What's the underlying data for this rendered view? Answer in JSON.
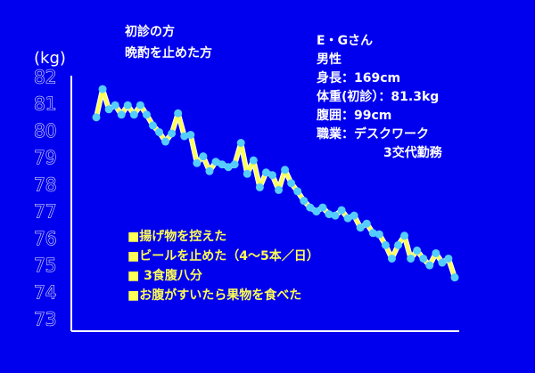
{
  "chart_data": {
    "type": "line",
    "title_lines": [
      "初診の方",
      "晩酌を止めた方"
    ],
    "y_label": "(kg)",
    "profile": [
      "E・Gさん",
      "男性",
      "身長：169cm",
      "体重(初診）：81.3kg",
      "腹囲：99cm",
      "職業：デスクワーク",
      "3交代勤務"
    ],
    "notes": [
      "■揚げ物を控えた",
      "■ビールを止めた（4～5本／日）",
      "■ 3食腹八分",
      "■お腹がすいたら果物を食べた"
    ],
    "values": [
      80.55,
      81.6,
      80.85,
      81.0,
      80.65,
      81.0,
      80.65,
      81.0,
      80.65,
      80.25,
      80.0,
      79.65,
      79.95,
      80.7,
      79.85,
      79.9,
      78.85,
      79.1,
      78.55,
      78.9,
      78.8,
      78.7,
      78.8,
      79.6,
      78.45,
      78.95,
      77.95,
      78.5,
      78.4,
      77.85,
      78.6,
      78.1,
      77.8,
      77.45,
      77.2,
      77.05,
      77.2,
      76.95,
      76.9,
      77.1,
      76.8,
      76.9,
      76.45,
      76.6,
      76.25,
      76.2,
      75.8,
      75.3,
      75.8,
      76.15,
      75.3,
      75.6,
      75.3,
      75.05,
      75.5,
      75.15,
      75.3,
      74.6
    ],
    "color": "#ffff55",
    "marker_color": "#55ccff",
    "ylim": [
      73,
      82
    ],
    "yticks": [
      73,
      74,
      75,
      76,
      77,
      78,
      79,
      80,
      81,
      82
    ]
  }
}
